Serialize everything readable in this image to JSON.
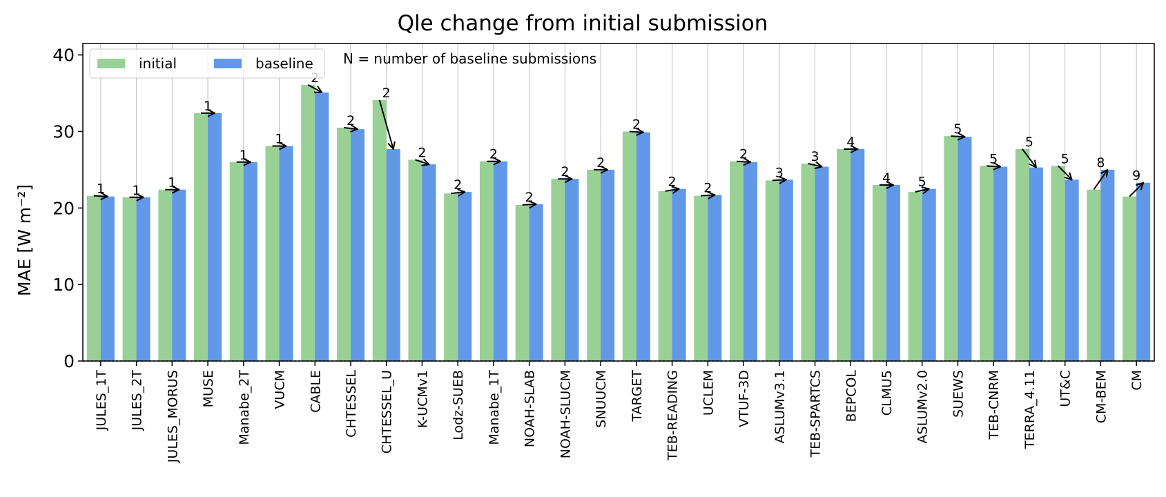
{
  "chart_data": {
    "type": "bar",
    "title": "Qle change from initial submission",
    "ylabel": "MAE [W m⁻²]",
    "xlabel": "",
    "ylim": [
      0,
      41.5
    ],
    "yticks": [
      0,
      10,
      20,
      30,
      40
    ],
    "grid": "vertical",
    "legend_position": "top-left",
    "annotation": "N = number of baseline submissions",
    "categories": [
      "JULES_1T",
      "JULES_2T",
      "JULES_MORUS",
      "MUSE",
      "Manabe_2T",
      "VUCM",
      "CABLE",
      "CHTESSEL",
      "CHTESSEL_U",
      "K-UCMv1",
      "Lodz-SUEB",
      "Manabe_1T",
      "NOAH-SLAB",
      "NOAH-SLUCM",
      "SNUUCM",
      "TARGET",
      "TEB-READING",
      "UCLEM",
      "VTUF-3D",
      "ASLUMv3.1",
      "TEB-SPARTCS",
      "BEPCOL",
      "CLMU5",
      "ASLUMv2.0",
      "SUEWS",
      "TEB-CNRM",
      "TERRA_4.11",
      "UT&C",
      "CM-BEM",
      "CM"
    ],
    "series": [
      {
        "name": "initial",
        "color": "#98d095",
        "values": [
          21.6,
          21.4,
          22.4,
          32.4,
          26.0,
          28.1,
          36.1,
          30.5,
          34.1,
          26.3,
          21.9,
          26.1,
          20.4,
          23.8,
          25.0,
          30.0,
          22.2,
          21.6,
          26.1,
          23.6,
          25.8,
          27.7,
          23.0,
          22.1,
          29.4,
          25.5,
          27.7,
          25.5,
          22.4,
          21.5
        ]
      },
      {
        "name": "baseline",
        "color": "#6199e8",
        "values": [
          21.5,
          21.4,
          22.4,
          32.4,
          26.0,
          28.1,
          35.1,
          30.3,
          27.7,
          25.7,
          22.1,
          26.1,
          20.5,
          23.8,
          25.0,
          29.9,
          22.5,
          21.7,
          26.0,
          23.7,
          25.4,
          27.7,
          23.0,
          22.5,
          29.3,
          25.4,
          25.3,
          23.7,
          25.0,
          23.3
        ]
      }
    ],
    "n_submissions": [
      "1",
      "1",
      "1",
      "1",
      "1",
      "1",
      "2",
      "2",
      "2",
      "2",
      "2",
      "2",
      "2",
      "2",
      "2",
      "2",
      "2",
      "2",
      "2",
      "3",
      "3",
      "4",
      "4",
      "5",
      "5",
      "5",
      "5",
      "5",
      "8",
      "9"
    ]
  }
}
